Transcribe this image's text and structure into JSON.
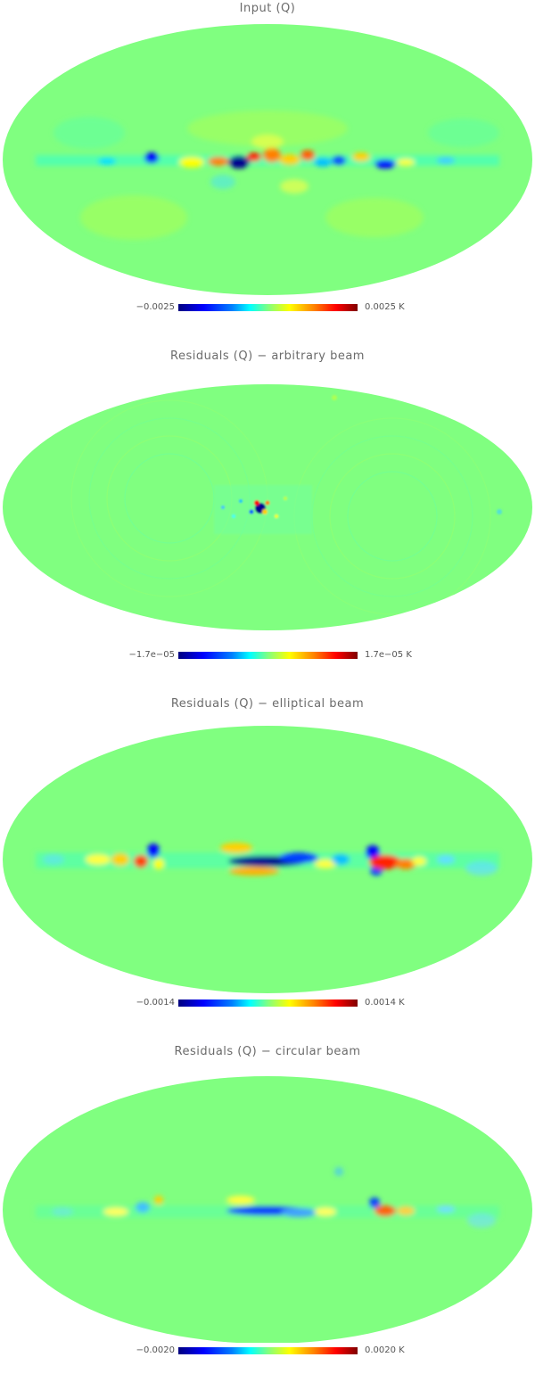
{
  "panels": [
    {
      "title": "Input (Q)",
      "colorbar": {
        "min_label": "−0.0025",
        "max_label": "0.0025 K"
      },
      "pattern": "input"
    },
    {
      "title": "Residuals (Q) − arbitrary beam",
      "colorbar": {
        "min_label": "−1.7e−05",
        "max_label": "1.7e−05 K"
      },
      "pattern": "arbitrary"
    },
    {
      "title": "Residuals (Q) − elliptical beam",
      "colorbar": {
        "min_label": "−0.0014",
        "max_label": "0.0014 K"
      },
      "pattern": "elliptical"
    },
    {
      "title": "Residuals (Q) − circular beam",
      "colorbar": {
        "min_label": "−0.0020",
        "max_label": "0.0020 K"
      },
      "pattern": "circular"
    }
  ],
  "colors": {
    "background_field": "#80ff80",
    "colormap": [
      "#00007f",
      "#0000ff",
      "#0080ff",
      "#00ffff",
      "#80ff80",
      "#ffff00",
      "#ff8000",
      "#ff0000",
      "#7f0000"
    ]
  }
}
